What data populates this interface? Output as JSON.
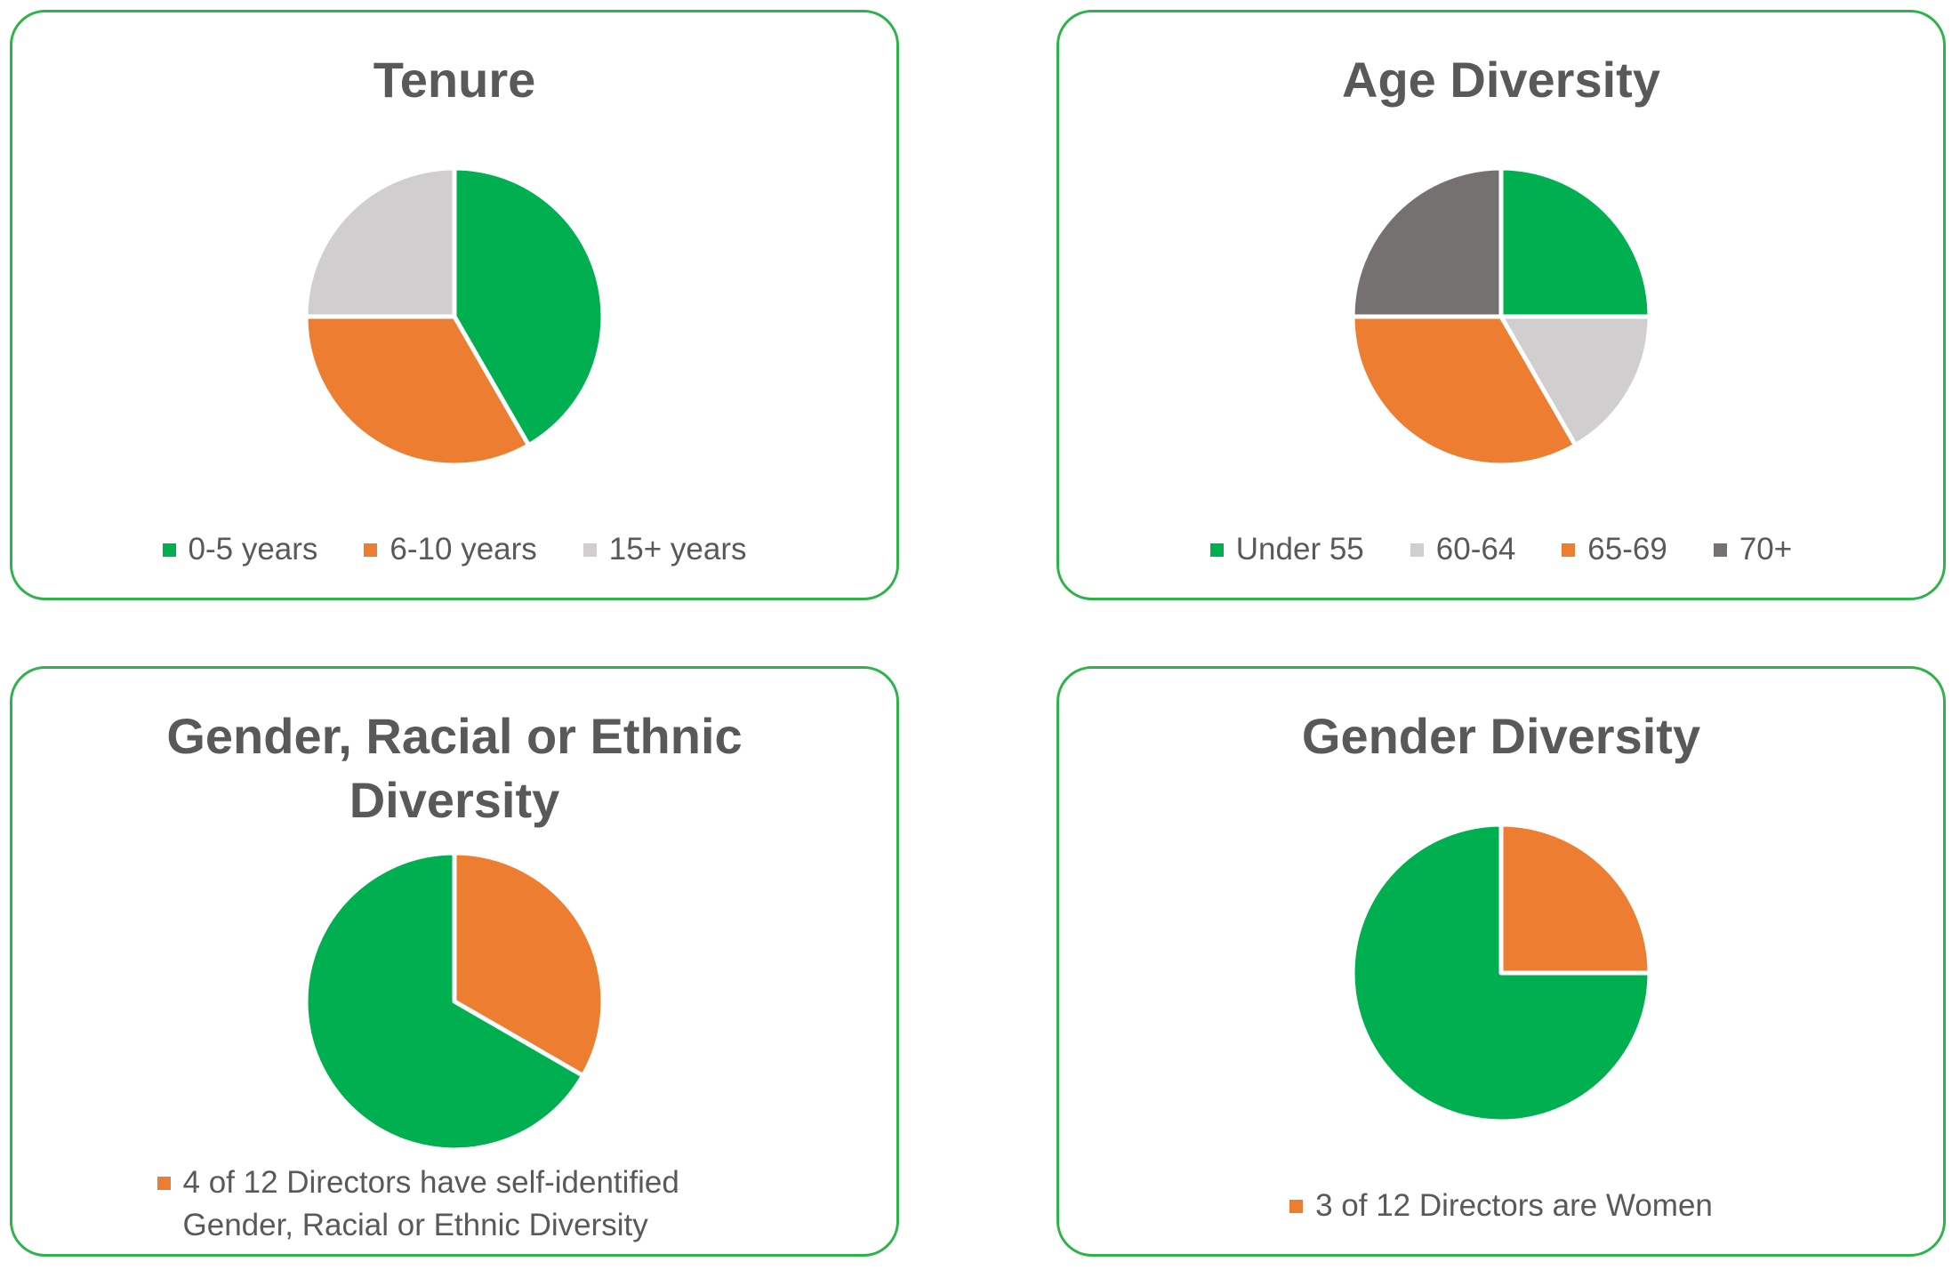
{
  "chart_data": [
    {
      "type": "pie",
      "title": "Tenure",
      "categories": [
        "0-5 years",
        "6-10 years",
        "15+ years"
      ],
      "values": [
        5,
        4,
        3
      ],
      "colors": [
        "#00b050",
        "#ed7d31",
        "#d0cece"
      ]
    },
    {
      "type": "pie",
      "title": "Age Diversity",
      "categories": [
        "Under 55",
        "60-64",
        "65-69",
        "70+"
      ],
      "values": [
        3,
        2,
        4,
        3
      ],
      "colors": [
        "#00b050",
        "#d0cece",
        "#ed7d31",
        "#767171"
      ]
    },
    {
      "type": "pie",
      "title": "Gender, Racial or Ethnic Diversity",
      "categories": [
        "4 of 12 Directors have self-identified Gender, Racial or Ethnic Diversity",
        null
      ],
      "values": [
        4,
        8
      ],
      "colors": [
        "#ed7d31",
        "#00b050"
      ]
    },
    {
      "type": "pie",
      "title": "Gender Diversity",
      "categories": [
        "3 of 12 Directors are Women",
        null
      ],
      "values": [
        3,
        9
      ],
      "colors": [
        "#ed7d31",
        "#00b050"
      ]
    }
  ]
}
